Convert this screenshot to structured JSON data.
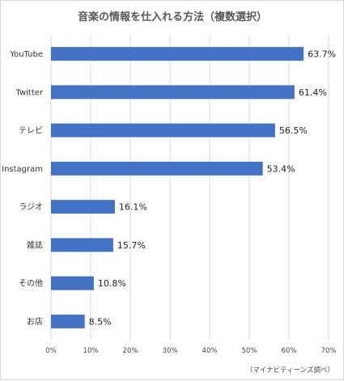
{
  "chart_data": {
    "type": "bar",
    "orientation": "horizontal",
    "title": "音楽の情報を仕入れる方法（複数選択）",
    "categories": [
      "YouTube",
      "Twitter",
      "テレビ",
      "Instagram",
      "ラジオ",
      "雑誌",
      "その他",
      "お店"
    ],
    "values": [
      63.7,
      61.4,
      56.5,
      53.4,
      16.1,
      15.7,
      10.8,
      8.5
    ],
    "value_labels": [
      "63.7%",
      "61.4%",
      "56.5%",
      "53.4%",
      "16.1%",
      "15.7%",
      "10.8%",
      "8.5%"
    ],
    "xlim": [
      0,
      70
    ],
    "x_ticks": [
      0,
      10,
      20,
      30,
      40,
      50,
      60,
      70
    ],
    "x_tick_labels": [
      "0%",
      "10%",
      "20%",
      "30%",
      "40%",
      "50%",
      "60%",
      "70%"
    ],
    "grid": true,
    "legend": "none",
    "bar_color": "#4472C4",
    "source_note": "（マイナビティーンズ調べ）"
  }
}
